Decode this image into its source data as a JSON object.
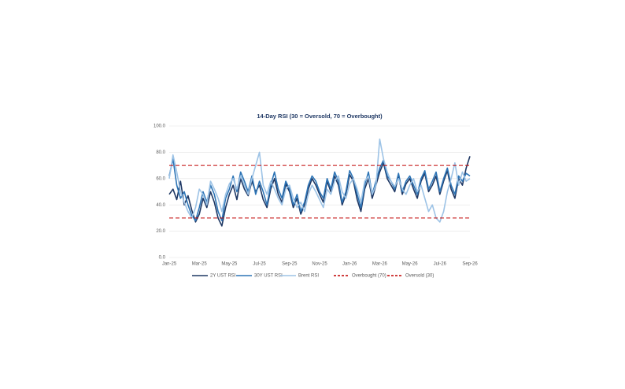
{
  "chart_data": {
    "type": "line",
    "title": "14-Day RSI  (30 = Oversold, 70 = Overbought)",
    "categories": [
      "Jan-25",
      null,
      null,
      null,
      null,
      null,
      null,
      null,
      "Mar-25",
      null,
      null,
      null,
      null,
      null,
      null,
      null,
      "May-25",
      null,
      null,
      null,
      null,
      null,
      null,
      null,
      "Jul-25",
      null,
      null,
      null,
      null,
      null,
      null,
      null,
      "Sep-25",
      null,
      null,
      null,
      null,
      null,
      null,
      null,
      "Nov-25",
      null,
      null,
      null,
      null,
      null,
      null,
      null,
      "Jan-26",
      null,
      null,
      null,
      null,
      null,
      null,
      null,
      "Mar-26",
      null,
      null,
      null,
      null,
      null,
      null,
      null,
      "May-26",
      null,
      null,
      null,
      null,
      null,
      null,
      null,
      "Jul-26",
      null,
      null,
      null,
      null,
      null,
      null,
      null,
      "Sep-26"
    ],
    "series": [
      {
        "name": "2Y UST RSI",
        "color": "#1f3864",
        "values": [
          48,
          52,
          44,
          58,
          40,
          47,
          36,
          27,
          33,
          45,
          38,
          50,
          42,
          30,
          24,
          38,
          48,
          55,
          44,
          60,
          52,
          47,
          58,
          50,
          55,
          44,
          38,
          52,
          60,
          48,
          42,
          56,
          50,
          38,
          45,
          33,
          40,
          52,
          60,
          55,
          48,
          42,
          58,
          50,
          62,
          55,
          40,
          48,
          63,
          58,
          44,
          35,
          52,
          60,
          45,
          55,
          65,
          72,
          60,
          55,
          50,
          62,
          48,
          56,
          60,
          52,
          45,
          58,
          64,
          50,
          55,
          62,
          48,
          58,
          66,
          52,
          45,
          60,
          55,
          68,
          77
        ]
      },
      {
        "name": "30Y UST RSI",
        "color": "#2e75b6",
        "values": [
          62,
          75,
          55,
          45,
          50,
          40,
          32,
          28,
          38,
          50,
          42,
          55,
          48,
          35,
          28,
          45,
          52,
          62,
          50,
          65,
          58,
          50,
          62,
          48,
          58,
          50,
          40,
          55,
          65,
          52,
          45,
          58,
          52,
          40,
          48,
          35,
          42,
          55,
          62,
          58,
          50,
          45,
          60,
          52,
          65,
          58,
          42,
          50,
          66,
          60,
          48,
          38,
          55,
          65,
          48,
          58,
          68,
          74,
          62,
          58,
          52,
          64,
          50,
          58,
          62,
          55,
          48,
          60,
          66,
          52,
          58,
          65,
          50,
          60,
          68,
          55,
          48,
          62,
          58,
          64,
          62
        ]
      },
      {
        "name": "Brent RSI",
        "color": "#9dc3e6",
        "values": [
          60,
          78,
          65,
          50,
          42,
          35,
          30,
          38,
          52,
          48,
          40,
          58,
          52,
          45,
          35,
          48,
          56,
          60,
          52,
          62,
          55,
          48,
          60,
          70,
          80,
          55,
          48,
          58,
          52,
          45,
          40,
          52,
          55,
          45,
          38,
          42,
          35,
          48,
          55,
          50,
          44,
          38,
          52,
          48,
          58,
          62,
          50,
          45,
          56,
          60,
          52,
          42,
          58,
          62,
          48,
          55,
          90,
          75,
          65,
          58,
          54,
          60,
          52,
          48,
          55,
          60,
          50,
          55,
          45,
          35,
          40,
          30,
          27,
          35,
          50,
          60,
          72,
          55,
          65,
          58,
          60
        ]
      }
    ],
    "reference_lines": [
      {
        "name": "Overbought (70)",
        "value": 70,
        "color": "#c00000"
      },
      {
        "name": "Oversold (30)",
        "value": 30,
        "color": "#c00000"
      }
    ],
    "ylim": [
      0,
      100
    ],
    "yticks": [
      {
        "value": 0,
        "label": "0.0"
      },
      {
        "value": 20,
        "label": "20.0"
      },
      {
        "value": 40,
        "label": "40.0"
      },
      {
        "value": 60,
        "label": "60.0"
      },
      {
        "value": 80,
        "label": "80.0"
      },
      {
        "value": 100,
        "label": "100.0"
      }
    ],
    "grid": true
  }
}
